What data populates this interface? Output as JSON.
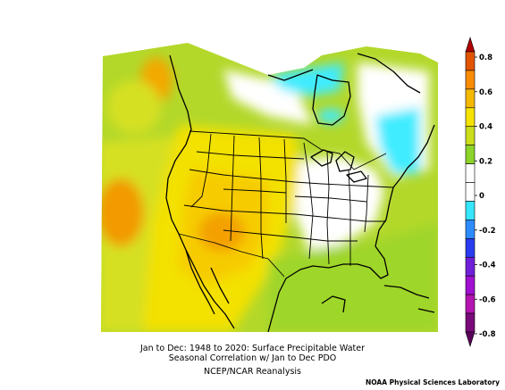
{
  "caption": {
    "line1": "Jan to Dec: 1948 to 2020: Surface Precipitable Water",
    "line2": "Seasonal Correlation w/ Jan to Dec PDO",
    "line3": "NCEP/NCAR Reanalysis"
  },
  "credit": "NOAA Physical Sciences Laboratory",
  "colorbar": {
    "labels": [
      "0.8",
      "0.6",
      "0.4",
      "0.2",
      "0",
      "-0.2",
      "-0.4",
      "-0.6",
      "-0.8"
    ],
    "colors": [
      "#e25400",
      "#f98c00",
      "#f5b800",
      "#f5e200",
      "#ccdd1c",
      "#8cd42a",
      "#ffffff",
      "#ffffff",
      "#36e6ff",
      "#2c8cff",
      "#2a3cf0",
      "#7020d8",
      "#a010d0",
      "#b414b0",
      "#7a0a7a"
    ]
  },
  "legend_colors": {
    "c08": "#e25400",
    "c06": "#f98c00",
    "c04": "#f5b800",
    "c03": "#f5e200",
    "c02": "#ccdd1c",
    "c01": "#8cd42a",
    "c00": "#ffffff",
    "cn02": "#36e6ff"
  }
}
